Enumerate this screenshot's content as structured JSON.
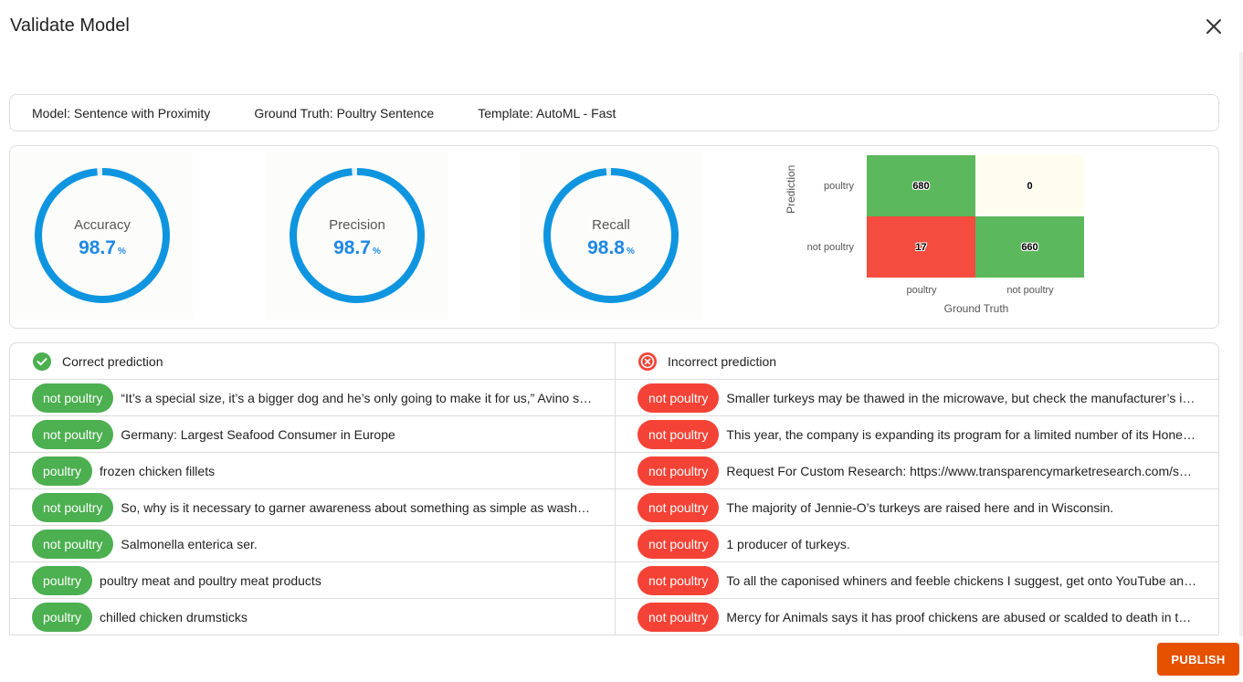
{
  "dialog": {
    "title": "Validate Model",
    "close_icon": "close-icon",
    "publish_label": "PUBLISH",
    "colors": {
      "accent": "#1e88e5",
      "publish": "#e65100",
      "correct": "#4caf50",
      "incorrect": "#f44336"
    }
  },
  "info": {
    "model": "Model: Sentence with Proximity",
    "ground_truth": "Ground Truth: Poultry Sentence",
    "template": "Template: AutoML - Fast"
  },
  "metrics": [
    {
      "label": "Accuracy",
      "value": "98.7",
      "unit": "%",
      "fraction": 0.987
    },
    {
      "label": "Precision",
      "value": "98.7",
      "unit": "%",
      "fraction": 0.987
    },
    {
      "label": "Recall",
      "value": "98.8",
      "unit": "%",
      "fraction": 0.988
    }
  ],
  "confusion_matrix": {
    "ylabel": "Prediction",
    "xlabel": "Ground Truth",
    "row_labels": [
      "poultry",
      "not poultry"
    ],
    "col_labels": [
      "poultry",
      "not poultry"
    ],
    "cells": [
      [
        {
          "value": "680",
          "color": "#5cb85c"
        },
        {
          "value": "0",
          "color": "#fffdf0"
        }
      ],
      [
        {
          "value": "17",
          "color": "#f44c3f"
        },
        {
          "value": "660",
          "color": "#5cb85c"
        }
      ]
    ]
  },
  "predictions": {
    "correct": {
      "title": "Correct prediction",
      "icon": "check-circle-icon",
      "rows": [
        {
          "label": "not poultry",
          "text": "“It’s a special size, it’s a bigger dog and he’s only going to make it for us,” Avino said."
        },
        {
          "label": "not poultry",
          "text": "Germany: Largest Seafood Consumer in Europe"
        },
        {
          "label": "poultry",
          "text": "frozen chicken fillets"
        },
        {
          "label": "not poultry",
          "text": "So, why is it necessary to garner awareness about something as simple as washing hands?"
        },
        {
          "label": "not poultry",
          "text": "Salmonella enterica ser."
        },
        {
          "label": "poultry",
          "text": "poultry meat and poultry meat products"
        },
        {
          "label": "poultry",
          "text": "chilled chicken drumsticks"
        }
      ]
    },
    "incorrect": {
      "title": "Incorrect prediction",
      "icon": "error-circle-icon",
      "rows": [
        {
          "label": "not poultry",
          "text": "Smaller turkeys may be thawed in the microwave, but check the manufacturer’s instructions."
        },
        {
          "label": "not poultry",
          "text": "This year, the company is expanding its program for a limited number of its Honeysuckle White turkeys."
        },
        {
          "label": "not poultry",
          "text": "Request For Custom Research: https://www.transparencymarketresearch.com/sample/sample.php"
        },
        {
          "label": "not poultry",
          "text": "The majority of Jennie-O’s turkeys are raised here and in Wisconsin."
        },
        {
          "label": "not poultry",
          "text": "1 producer of turkeys."
        },
        {
          "label": "not poultry",
          "text": "To all the caponised whiners and feeble chickens I suggest, get onto YouTube and watch."
        },
        {
          "label": "not poultry",
          "text": "Mercy for Animals says it has proof chickens are abused or scalded to death in tanks."
        }
      ]
    }
  }
}
